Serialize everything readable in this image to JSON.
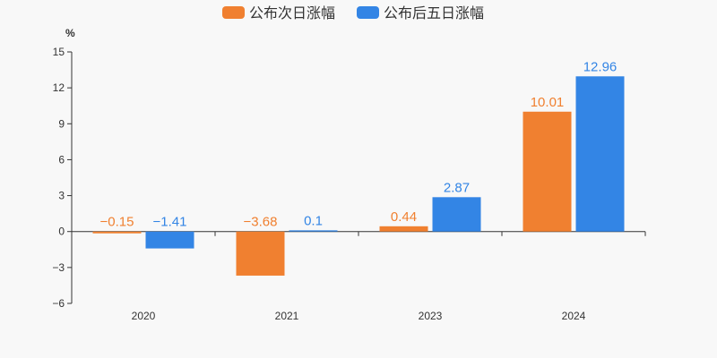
{
  "chart_data": {
    "type": "bar",
    "unit": "%",
    "categories": [
      "2020",
      "2021",
      "2023",
      "2024"
    ],
    "series": [
      {
        "name": "公布次日涨幅",
        "values": [
          -0.15,
          -3.68,
          0.44,
          10.01
        ],
        "color": "#f08030"
      },
      {
        "name": "公布后五日涨幅",
        "values": [
          -1.41,
          0.1,
          2.87,
          12.96
        ],
        "color": "#3385e5"
      }
    ],
    "data_labels": [
      [
        "−0.15",
        "−3.68",
        "0.44",
        "10.01"
      ],
      [
        "−1.41",
        "0.1",
        "2.87",
        "12.96"
      ]
    ],
    "ylim": [
      -6,
      15
    ],
    "yticks": [
      -6,
      -3,
      0,
      3,
      6,
      9,
      12,
      15
    ],
    "ytick_labels": [
      "−6",
      "−3",
      "0",
      "3",
      "6",
      "9",
      "12",
      "15"
    ],
    "legend_position": "top-center",
    "grid": false
  }
}
